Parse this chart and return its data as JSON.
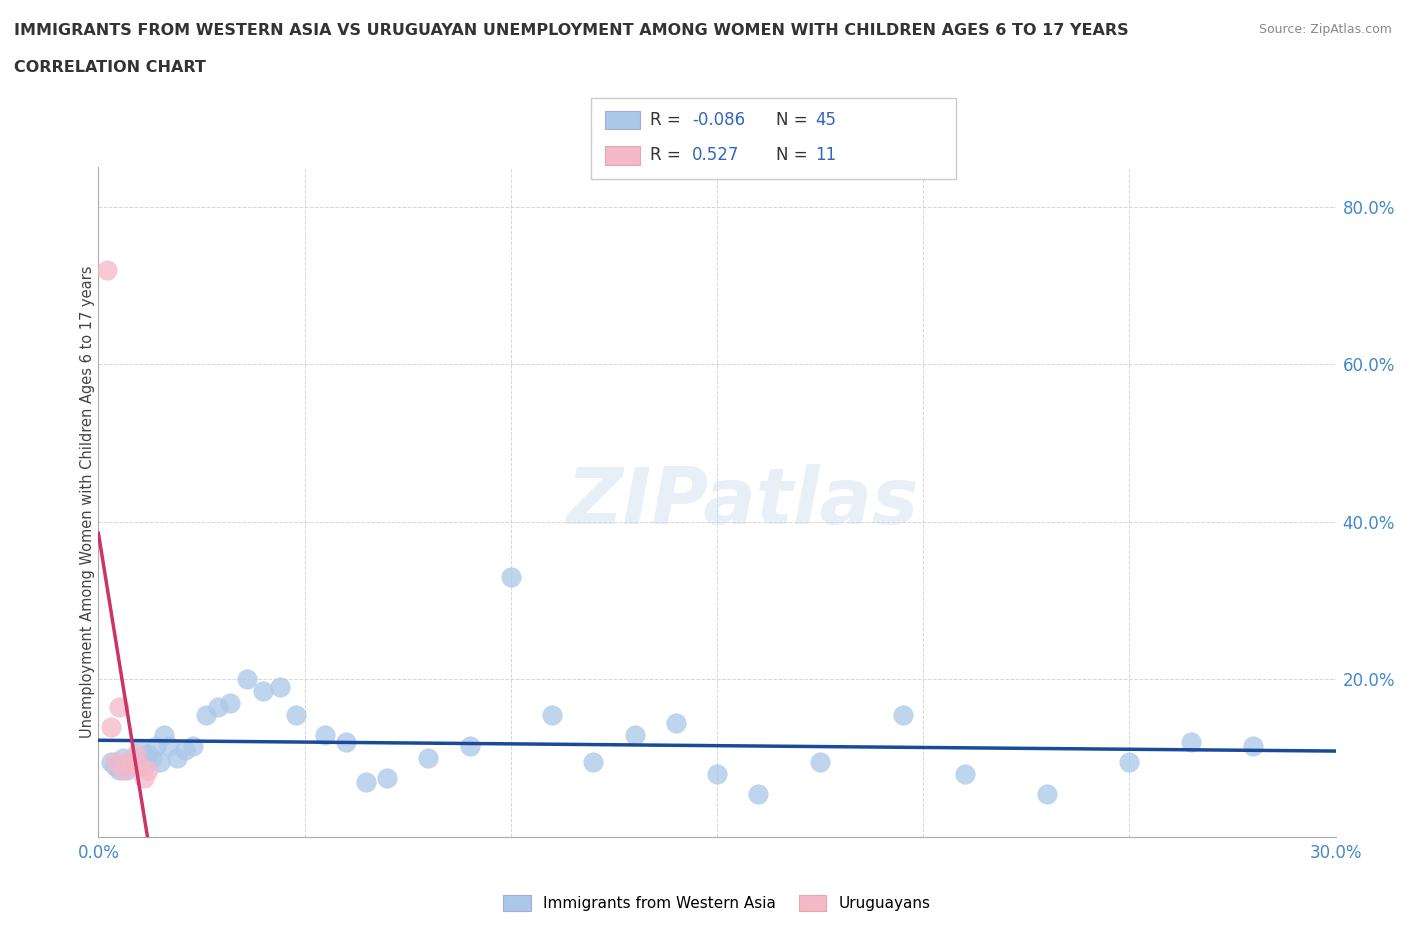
{
  "title_line1": "IMMIGRANTS FROM WESTERN ASIA VS URUGUAYAN UNEMPLOYMENT AMONG WOMEN WITH CHILDREN AGES 6 TO 17 YEARS",
  "title_line2": "CORRELATION CHART",
  "source_text": "Source: ZipAtlas.com",
  "ylabel": "Unemployment Among Women with Children Ages 6 to 17 years",
  "xlim": [
    0.0,
    0.3
  ],
  "ylim": [
    0.0,
    0.85
  ],
  "ytick_vals": [
    0.0,
    0.2,
    0.4,
    0.6,
    0.8
  ],
  "xtick_vals": [
    0.0,
    0.05,
    0.1,
    0.15,
    0.2,
    0.25,
    0.3
  ],
  "watermark": "ZIPatlas",
  "blue_scatter_x": [
    0.003,
    0.004,
    0.005,
    0.006,
    0.007,
    0.008,
    0.009,
    0.01,
    0.011,
    0.012,
    0.013,
    0.014,
    0.015,
    0.016,
    0.017,
    0.019,
    0.021,
    0.023,
    0.026,
    0.029,
    0.032,
    0.036,
    0.04,
    0.044,
    0.048,
    0.055,
    0.06,
    0.065,
    0.07,
    0.08,
    0.09,
    0.1,
    0.11,
    0.12,
    0.13,
    0.14,
    0.15,
    0.16,
    0.175,
    0.195,
    0.21,
    0.23,
    0.25,
    0.265,
    0.28
  ],
  "blue_scatter_y": [
    0.095,
    0.09,
    0.085,
    0.1,
    0.085,
    0.095,
    0.1,
    0.11,
    0.09,
    0.105,
    0.1,
    0.115,
    0.095,
    0.13,
    0.115,
    0.1,
    0.11,
    0.115,
    0.155,
    0.165,
    0.17,
    0.2,
    0.185,
    0.19,
    0.155,
    0.13,
    0.12,
    0.07,
    0.075,
    0.1,
    0.115,
    0.33,
    0.155,
    0.095,
    0.13,
    0.145,
    0.08,
    0.055,
    0.095,
    0.155,
    0.08,
    0.055,
    0.095,
    0.12,
    0.115
  ],
  "pink_scatter_x": [
    0.002,
    0.003,
    0.004,
    0.005,
    0.006,
    0.007,
    0.008,
    0.009,
    0.01,
    0.011,
    0.012
  ],
  "pink_scatter_y": [
    0.72,
    0.14,
    0.095,
    0.165,
    0.085,
    0.095,
    0.09,
    0.105,
    0.09,
    0.075,
    0.085
  ],
  "blue_R": -0.086,
  "blue_N": 45,
  "pink_R": 0.527,
  "pink_N": 11,
  "blue_scatter_color": "#aac8e8",
  "pink_scatter_color": "#f5b8c8",
  "blue_line_color": "#1a4a99",
  "pink_line_color": "#cc3366",
  "pink_dash_color": "#e888aa",
  "tick_color": "#4488cc",
  "grid_color": "#cccccc",
  "background_color": "#ffffff",
  "title_color": "#333333",
  "axis_label_color": "#444444",
  "legend_box_color": "#f0f4f8",
  "legend_border_color": "#cccccc"
}
